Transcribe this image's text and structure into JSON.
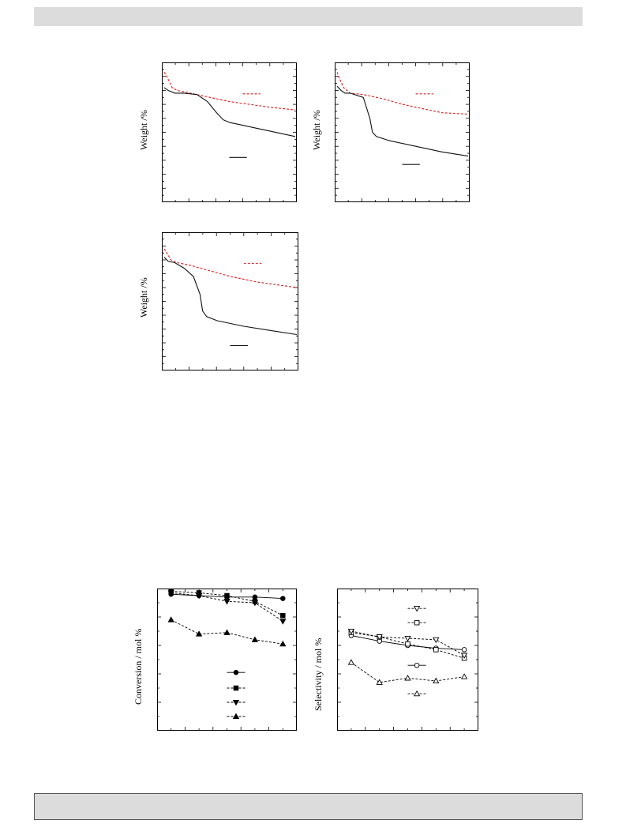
{
  "colors": {
    "red_dashed": "#d62020",
    "black_solid": "#111111",
    "banner": "#dcdcdc"
  },
  "figure1": {
    "panels": [
      {
        "ylabel": "Weight /%"
      },
      {
        "ylabel": "Weight /%"
      },
      {
        "ylabel": "Weight /%"
      }
    ]
  },
  "figure2": {
    "panels": [
      {
        "ylabel": "Conversion / mol %"
      },
      {
        "ylabel": "Selectivity / mol %"
      }
    ]
  },
  "chart_data": [
    {
      "type": "line",
      "title": "",
      "xlabel": "",
      "ylabel": "Weight /%",
      "xlim": [
        0,
        1
      ],
      "ylim": [
        0,
        1
      ],
      "series": [
        {
          "style": "dashed",
          "color": "#d62020",
          "x": [
            0.0,
            0.02,
            0.06,
            0.1,
            0.2,
            0.35,
            0.5,
            0.65,
            0.8,
            0.9,
            1.0
          ],
          "y": [
            0.93,
            0.9,
            0.82,
            0.8,
            0.78,
            0.75,
            0.72,
            0.7,
            0.68,
            0.67,
            0.66
          ]
        },
        {
          "style": "solid",
          "color": "#111111",
          "x": [
            0.0,
            0.03,
            0.08,
            0.15,
            0.25,
            0.33,
            0.4,
            0.45,
            0.5,
            0.6,
            0.7,
            0.8,
            0.9,
            1.0
          ],
          "y": [
            0.82,
            0.8,
            0.78,
            0.78,
            0.77,
            0.72,
            0.64,
            0.59,
            0.57,
            0.55,
            0.53,
            0.51,
            0.49,
            0.47
          ]
        }
      ]
    },
    {
      "type": "line",
      "title": "",
      "xlabel": "",
      "ylabel": "Weight /%",
      "xlim": [
        0,
        1
      ],
      "ylim": [
        0,
        1
      ],
      "series": [
        {
          "style": "dashed",
          "color": "#d62020",
          "x": [
            0.0,
            0.02,
            0.05,
            0.1,
            0.2,
            0.35,
            0.5,
            0.65,
            0.8,
            1.0
          ],
          "y": [
            0.93,
            0.88,
            0.82,
            0.78,
            0.77,
            0.74,
            0.7,
            0.67,
            0.64,
            0.63
          ]
        },
        {
          "style": "solid",
          "color": "#111111",
          "x": [
            0.0,
            0.03,
            0.06,
            0.1,
            0.2,
            0.25,
            0.27,
            0.3,
            0.4,
            0.6,
            0.8,
            1.0
          ],
          "y": [
            0.83,
            0.8,
            0.78,
            0.78,
            0.75,
            0.6,
            0.5,
            0.47,
            0.44,
            0.4,
            0.36,
            0.33
          ]
        }
      ]
    },
    {
      "type": "line",
      "title": "",
      "xlabel": "",
      "ylabel": "Weight /%",
      "xlim": [
        0,
        1
      ],
      "ylim": [
        0,
        1
      ],
      "series": [
        {
          "style": "dashed",
          "color": "#d62020",
          "x": [
            0.0,
            0.02,
            0.05,
            0.1,
            0.2,
            0.35,
            0.5,
            0.7,
            0.85,
            1.0
          ],
          "y": [
            0.88,
            0.85,
            0.8,
            0.78,
            0.76,
            0.72,
            0.68,
            0.64,
            0.62,
            0.6
          ]
        },
        {
          "style": "solid",
          "color": "#111111",
          "x": [
            0.0,
            0.03,
            0.08,
            0.15,
            0.22,
            0.27,
            0.29,
            0.32,
            0.4,
            0.6,
            0.8,
            1.0
          ],
          "y": [
            0.82,
            0.79,
            0.78,
            0.74,
            0.68,
            0.55,
            0.43,
            0.39,
            0.36,
            0.32,
            0.29,
            0.26
          ]
        }
      ]
    },
    {
      "type": "line",
      "title": "",
      "xlabel": "",
      "ylabel": "Conversion / mol %",
      "x": [
        1,
        2,
        3,
        4,
        5
      ],
      "ylim": [
        0,
        100
      ],
      "series": [
        {
          "marker": "circle-filled",
          "style": "solid",
          "y": [
            96,
            95,
            94,
            94,
            93
          ]
        },
        {
          "marker": "square-filled",
          "style": "dashed",
          "y": [
            98,
            97,
            95,
            91,
            81
          ]
        },
        {
          "marker": "triangle-down-filled",
          "style": "dashed",
          "y": [
            97,
            95,
            91,
            90,
            77
          ]
        },
        {
          "marker": "triangle-up-filled",
          "style": "dashed",
          "y": [
            78,
            68,
            69,
            64,
            61
          ]
        }
      ],
      "legend": {
        "placement": "bottom-center",
        "markers": [
          "circle-filled",
          "square-filled",
          "triangle-down-filled",
          "triangle-up-filled"
        ]
      }
    },
    {
      "type": "line",
      "title": "",
      "xlabel": "",
      "ylabel": "Selectivity / mol %",
      "x": [
        1,
        2,
        3,
        4,
        5
      ],
      "ylim": [
        0,
        100
      ],
      "series": [
        {
          "marker": "circle-open",
          "style": "solid",
          "y": [
            67,
            63,
            60,
            58,
            57
          ]
        },
        {
          "marker": "square-open",
          "style": "dashed",
          "y": [
            69,
            66,
            61,
            57,
            51
          ]
        },
        {
          "marker": "triangle-down-open",
          "style": "dashed",
          "y": [
            70,
            66,
            65,
            64,
            53
          ]
        },
        {
          "marker": "triangle-up-open",
          "style": "dashed",
          "y": [
            48,
            34,
            37,
            35,
            38
          ]
        }
      ],
      "legend": {
        "placement": "split",
        "markers": [
          "triangle-down-open",
          "square-open",
          "circle-open",
          "triangle-up-open"
        ]
      }
    }
  ]
}
